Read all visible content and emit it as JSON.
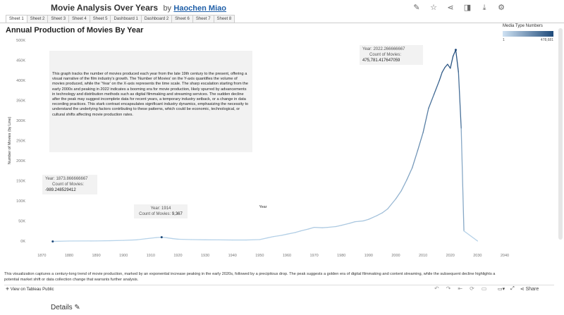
{
  "header": {
    "title": "Movie Analysis Over Years",
    "by": "by",
    "author": "Haochen Miao"
  },
  "tabs": [
    "Sheet 1",
    "Sheet 2",
    "Sheet 3",
    "Sheet 4",
    "Sheet 5",
    "Dashboard 1",
    "Dashboard 2",
    "Sheet 6",
    "Sheet 7",
    "Sheet 8"
  ],
  "legend": {
    "title": "Media Type Numbers",
    "min": "1",
    "max": "478,681"
  },
  "description": "This graph tracks the number of movies produced each year from the late 19th century to the present, offering a visual narrative of the film industry's growth. The 'Number of Movies' on the Y-axis quantifies the volume of movies produced, while the 'Year' on the X-axis represents the time scale. The sharp escalation starting from the early 2000s and peaking in 2022 indicates a booming era for movie production, likely spurred by advancements in technology and distribution methods such as digital filmmaking and streaming services. The sudden decline after the peak may suggest incomplete data for recent years, a temporary industry setback, or a change in data recording practices. This stark contrast encapsulates significant industry dynamics, emphasizing the necessity to understand the underlying factors contributing to these patterns, which could be economic, technological, or cultural shifts affecting movie production rates.",
  "annotations": {
    "a1": {
      "year_line": "Year: 1873.866666667",
      "count_label": "Count of Movies:",
      "count_value": "-989.248529412"
    },
    "a2": {
      "year_line": "Year: 1914",
      "count_label": "Count of Movies:",
      "count_value": "9,367"
    },
    "a3": {
      "year_line": "Year: 2022.266666667",
      "count_label": "Count of Movies:",
      "count_value": "475,781.417647059"
    }
  },
  "caption": "This visualization captures a century-long trend of movie production, marked by an exponential increase peaking in the early 2020s, followed by a precipitous drop. The peak suggests a golden era of digital filmmaking and content streaming, while the subsequent decline highlights a potential market shift or data collection change that warrants further analysis.",
  "footer": {
    "view_label": "View on Tableau Public",
    "share_label": "Share"
  },
  "details_label": "Details",
  "colors": {
    "line_light": "#b8d4ea",
    "line_dark": "#1e4a7a",
    "link": "#1f5fa8"
  },
  "chart_data": {
    "type": "line",
    "title": "Annual Production of Movies By Year",
    "xlabel": "Year",
    "ylabel": "Number of Movies (by Line)",
    "xlim": [
      1865,
      2040
    ],
    "ylim": [
      0,
      500000
    ],
    "xticks": [
      1870,
      1880,
      1890,
      1900,
      1910,
      1920,
      1930,
      1940,
      1950,
      1960,
      1970,
      1980,
      1990,
      2000,
      2010,
      2020,
      2030,
      2040
    ],
    "yticks": [
      0,
      50000,
      100000,
      150000,
      200000,
      250000,
      300000,
      350000,
      400000,
      450000,
      500000
    ],
    "ytick_labels": [
      "0K",
      "50K",
      "100K",
      "150K",
      "200K",
      "250K",
      "300K",
      "350K",
      "400K",
      "450K",
      "500K"
    ],
    "grid": false,
    "series": [
      {
        "x": [
          1874,
          1880,
          1890,
          1895,
          1900,
          1905,
          1908,
          1910,
          1912,
          1914,
          1916,
          1918,
          1920,
          1925,
          1930,
          1935,
          1940,
          1945,
          1950,
          1953,
          1955,
          1958,
          1960,
          1963,
          1965,
          1968,
          1970,
          1973,
          1975,
          1978,
          1980,
          1983,
          1985,
          1988,
          1990,
          1993,
          1995,
          1997,
          2000,
          2002,
          2004,
          2006,
          2008,
          2010,
          2012,
          2014,
          2016,
          2017,
          2018,
          2019,
          2020,
          2021,
          2022,
          2023,
          2024,
          2025,
          2030
        ],
        "y": [
          -989,
          0,
          200,
          800,
          1500,
          3000,
          5500,
          7000,
          8500,
          9367,
          8000,
          6000,
          4500,
          3500,
          3000,
          2800,
          2500,
          2500,
          3500,
          8000,
          11000,
          14000,
          17000,
          21000,
          25000,
          30000,
          34000,
          33000,
          34000,
          36000,
          39000,
          44000,
          48000,
          50000,
          54000,
          63000,
          70000,
          80000,
          105000,
          125000,
          152000,
          182000,
          225000,
          270000,
          330000,
          365000,
          400000,
          420000,
          432000,
          440000,
          430000,
          460000,
          475781,
          420000,
          280000,
          25000,
          0
        ]
      }
    ]
  }
}
